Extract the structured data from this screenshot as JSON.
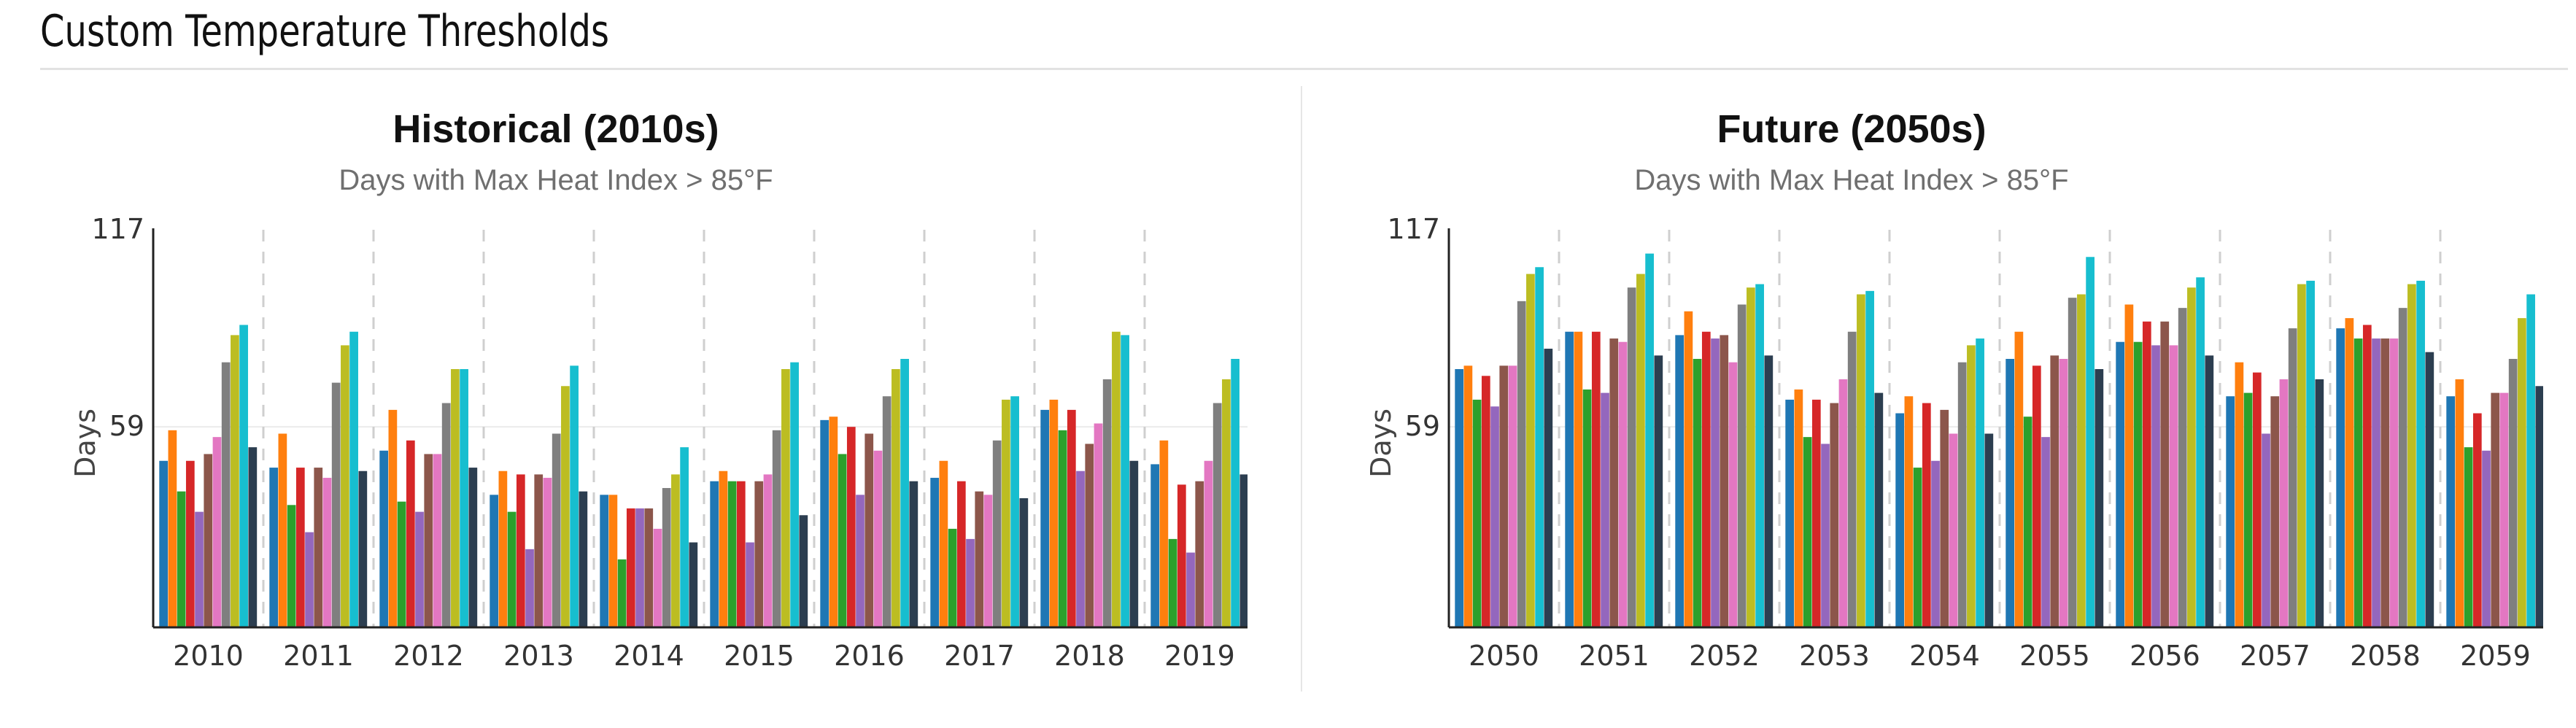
{
  "page": {
    "title": "Custom Temperature Thresholds"
  },
  "palette": [
    "#1f77b4",
    "#ff7f0e",
    "#2ca02c",
    "#d62728",
    "#9467bd",
    "#8c564b",
    "#e377c2",
    "#7f7f7f",
    "#bcbd22",
    "#17becf",
    "#2c3e50"
  ],
  "chart_data": [
    {
      "type": "bar",
      "title": "Historical (2010s)",
      "subtitle": "Days with Max Heat Index > 85°F",
      "ylabel": "Days",
      "xlabel": "",
      "ylim": [
        0,
        117
      ],
      "yticks": [
        59,
        117
      ],
      "grid": "vertical dashed separators between categories",
      "legend": "none",
      "categories": [
        "2010",
        "2011",
        "2012",
        "2013",
        "2014",
        "2015",
        "2016",
        "2017",
        "2018",
        "2019"
      ],
      "series": [
        {
          "values": [
            49,
            47,
            52,
            39,
            39,
            43,
            61,
            44,
            64,
            48
          ]
        },
        {
          "values": [
            58,
            57,
            64,
            46,
            39,
            46,
            62,
            49,
            67,
            55
          ]
        },
        {
          "values": [
            40,
            36,
            37,
            34,
            20,
            43,
            51,
            29,
            58,
            26
          ]
        },
        {
          "values": [
            49,
            47,
            55,
            45,
            35,
            43,
            59,
            43,
            64,
            42
          ]
        },
        {
          "values": [
            34,
            28,
            34,
            23,
            35,
            25,
            39,
            26,
            46,
            22
          ]
        },
        {
          "values": [
            51,
            47,
            51,
            45,
            35,
            43,
            57,
            40,
            54,
            43
          ]
        },
        {
          "values": [
            56,
            44,
            51,
            44,
            29,
            45,
            52,
            39,
            60,
            49
          ]
        },
        {
          "values": [
            78,
            72,
            66,
            57,
            41,
            58,
            68,
            55,
            73,
            66
          ]
        },
        {
          "values": [
            86,
            83,
            76,
            71,
            45,
            76,
            76,
            67,
            87,
            73
          ]
        },
        {
          "values": [
            89,
            87,
            76,
            77,
            53,
            78,
            79,
            68,
            86,
            79
          ]
        },
        {
          "values": [
            53,
            46,
            47,
            40,
            25,
            33,
            43,
            38,
            49,
            45
          ]
        }
      ]
    },
    {
      "type": "bar",
      "title": "Future (2050s)",
      "subtitle": "Days with Max Heat Index > 85°F",
      "ylabel": "Days",
      "xlabel": "",
      "ylim": [
        0,
        117
      ],
      "yticks": [
        59,
        117
      ],
      "grid": "vertical dashed separators between categories",
      "legend": "none",
      "categories": [
        "2050",
        "2051",
        "2052",
        "2053",
        "2054",
        "2055",
        "2056",
        "2057",
        "2058",
        "2059"
      ],
      "series": [
        {
          "values": [
            76,
            87,
            86,
            67,
            63,
            79,
            84,
            68,
            88,
            68
          ]
        },
        {
          "values": [
            77,
            87,
            93,
            70,
            68,
            87,
            95,
            78,
            91,
            73
          ]
        },
        {
          "values": [
            67,
            70,
            79,
            56,
            47,
            62,
            84,
            69,
            85,
            53
          ]
        },
        {
          "values": [
            74,
            87,
            87,
            67,
            66,
            77,
            90,
            75,
            89,
            63
          ]
        },
        {
          "values": [
            65,
            69,
            85,
            54,
            49,
            56,
            83,
            57,
            85,
            52
          ]
        },
        {
          "values": [
            77,
            85,
            86,
            66,
            64,
            80,
            90,
            68,
            85,
            69
          ]
        },
        {
          "values": [
            77,
            84,
            78,
            73,
            57,
            79,
            83,
            73,
            85,
            69
          ]
        },
        {
          "values": [
            96,
            100,
            95,
            87,
            78,
            97,
            94,
            88,
            94,
            79
          ]
        },
        {
          "values": [
            104,
            104,
            100,
            98,
            83,
            98,
            100,
            101,
            101,
            91
          ]
        },
        {
          "values": [
            106,
            110,
            101,
            99,
            85,
            109,
            103,
            102,
            102,
            98
          ]
        },
        {
          "values": [
            82,
            80,
            80,
            69,
            57,
            76,
            80,
            73,
            81,
            71
          ]
        }
      ]
    }
  ]
}
